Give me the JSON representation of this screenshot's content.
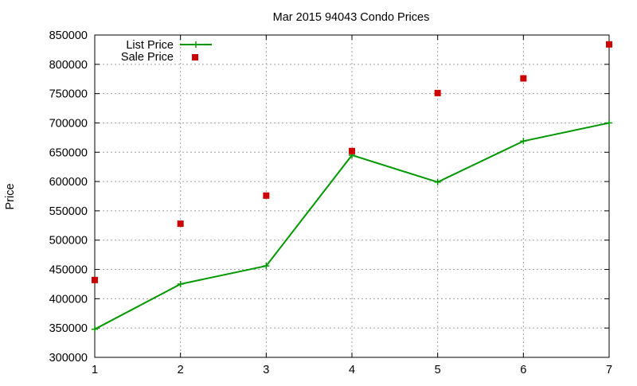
{
  "chart_data": {
    "type": "line",
    "title": "Mar 2015 94043 Condo Prices",
    "xlabel": "",
    "ylabel": "Price",
    "x": [
      1,
      2,
      3,
      4,
      5,
      6,
      7
    ],
    "xlim": [
      1,
      7
    ],
    "ylim": [
      300000,
      850000
    ],
    "xticks": [
      1,
      2,
      3,
      4,
      5,
      6,
      7
    ],
    "yticks": [
      300000,
      350000,
      400000,
      450000,
      500000,
      550000,
      600000,
      650000,
      700000,
      750000,
      800000,
      850000
    ],
    "grid": true,
    "legend_position": "top-left",
    "series": [
      {
        "name": "List Price",
        "style": "linespoints",
        "marker": "plus",
        "color": "#009900",
        "values": [
          348000,
          425000,
          456000,
          645000,
          599000,
          669000,
          700000
        ]
      },
      {
        "name": "Sale Price",
        "style": "points",
        "marker": "square",
        "color": "#cc0000",
        "values": [
          432000,
          528000,
          576000,
          652000,
          751000,
          776000,
          834000
        ]
      }
    ]
  }
}
